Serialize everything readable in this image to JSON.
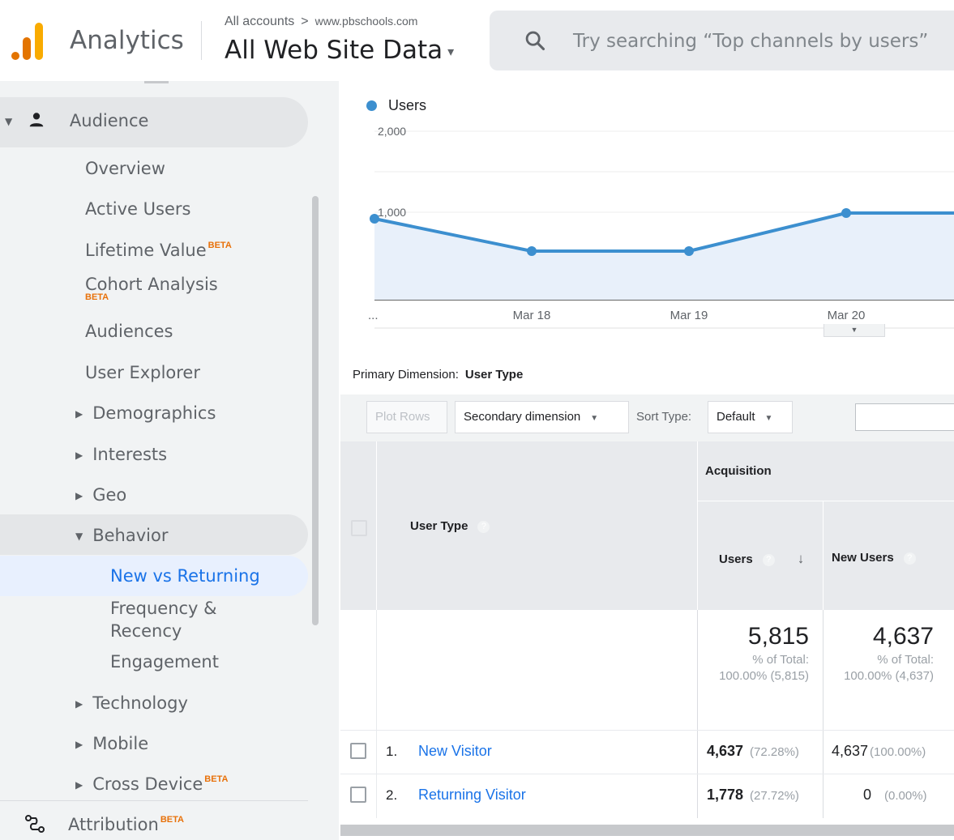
{
  "header": {
    "app_title": "Analytics",
    "breadcrumb_account": "All accounts",
    "breadcrumb_separator": ">",
    "breadcrumb_site": "www.pbschools.com",
    "view_title": "All Web Site Data",
    "search_placeholder": "Try searching “Top channels by users”"
  },
  "sidebar": {
    "audience": "Audience",
    "overview": "Overview",
    "active_users": "Active Users",
    "lifetime_value": "Lifetime Value",
    "cohort_analysis": "Cohort Analysis",
    "audiences": "Audiences",
    "user_explorer": "User Explorer",
    "demographics": "Demographics",
    "interests": "Interests",
    "geo": "Geo",
    "behavior": "Behavior",
    "new_vs_returning": "New vs Returning",
    "frequency_recency_1": "Frequency &",
    "frequency_recency_2": "Recency",
    "engagement": "Engagement",
    "technology": "Technology",
    "mobile": "Mobile",
    "cross_device": "Cross Device",
    "attribution": "Attribution",
    "beta_label": "BETA"
  },
  "chart_data": {
    "type": "line",
    "x": [
      "...",
      "Mar 18",
      "Mar 19",
      "Mar 20",
      ""
    ],
    "series": [
      {
        "name": "Users",
        "values": [
          1000,
          600,
          600,
          1070,
          1070
        ]
      }
    ],
    "y_ticks": [
      "2,000",
      "1,000"
    ],
    "ylim": [
      0,
      2000
    ],
    "color": "#3c8fcf",
    "fill": "#e8f0fa"
  },
  "report": {
    "primary_dimension_label": "Primary Dimension:",
    "primary_dimension_value": "User Type",
    "plot_rows": "Plot Rows",
    "secondary_dimension": "Secondary dimension",
    "sort_type_label": "Sort Type:",
    "sort_type_value": "Default",
    "columns": {
      "group": "Acquisition",
      "user_type": "User Type",
      "users": "Users",
      "new_users": "New Users"
    },
    "totals": {
      "users": "5,815",
      "users_pct_label": "% of Total:",
      "users_pct": "100.00% (5,815)",
      "new_users": "4,637",
      "new_users_pct_label": "% of Total:",
      "new_users_pct": "100.00% (4,637)"
    },
    "rows": [
      {
        "num": "1.",
        "type": "New Visitor",
        "users": "4,637",
        "users_pct": "(72.28%)",
        "new_users": "4,637",
        "new_users_pct": "(100.00%)"
      },
      {
        "num": "2.",
        "type": "Returning Visitor",
        "users": "1,778",
        "users_pct": "(27.72%)",
        "new_users": "0",
        "new_users_pct": "(0.00%)"
      }
    ]
  }
}
